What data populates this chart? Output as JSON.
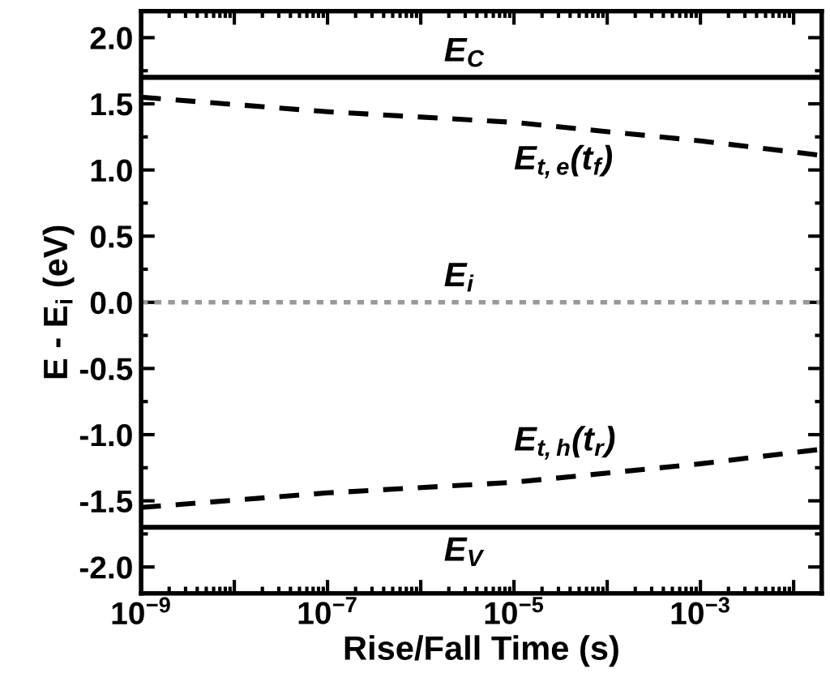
{
  "chart_data": {
    "type": "line",
    "xlabel": "Rise/Fall Time (s)",
    "ylabel": "E - E$_{i}$ (eV)",
    "log": "x",
    "x": [
      1e-09,
      1e-07,
      1e-05,
      0.001,
      0.02
    ],
    "series": [
      {
        "name": "E$_{t,e}$(t$_{f}$)",
        "color": "#000000",
        "values": [
          1.55,
          1.44,
          1.36,
          1.22,
          1.11
        ]
      },
      {
        "name": "E$_{t,h}$(t$_{r}$)",
        "color": "#000000",
        "values": [
          -1.55,
          -1.44,
          -1.36,
          -1.22,
          -1.11
        ]
      }
    ],
    "line_style": "dashed",
    "marker": "none",
    "grid": false,
    "legend": false,
    "xlim": [
      1e-09,
      0.02
    ],
    "xticks": [
      {
        "value": 1e-09,
        "label": "10$^{−9}$"
      },
      {
        "value": 1e-08,
        "label": null
      },
      {
        "value": 1e-07,
        "label": "10$^{−7}$"
      },
      {
        "value": 1e-06,
        "label": null
      },
      {
        "value": 1e-05,
        "label": "10$^{−5}$"
      },
      {
        "value": 0.0001,
        "label": null
      },
      {
        "value": 0.001,
        "label": "10$^{−3}$"
      },
      {
        "value": 0.01,
        "label": null
      }
    ],
    "ylim": [
      -2.2,
      2.2
    ],
    "yticks": [
      {
        "value": -2,
        "label": "-2.0"
      },
      {
        "value": -1.5,
        "label": "-1.5"
      },
      {
        "value": -1,
        "label": "-1.0"
      },
      {
        "value": -0.5,
        "label": "-0.5"
      },
      {
        "value": 0,
        "label": "0.0"
      },
      {
        "value": 0.5,
        "label": "0.5"
      },
      {
        "value": 1,
        "label": "1.0"
      },
      {
        "value": 1.5,
        "label": "1.5"
      },
      {
        "value": 2,
        "label": "2.0"
      }
    ],
    "ref_lines": [
      {
        "axis": "y",
        "value": 1.7,
        "label": "E$_{C}$",
        "color": "#000000",
        "line_style": "solid"
      },
      {
        "axis": "y",
        "value": 0,
        "label": "E$_{i}$",
        "color": "#999999",
        "line_style": "dotted"
      },
      {
        "axis": "y",
        "value": -1.7,
        "label": "E$_{V}$",
        "color": "#000000",
        "line_style": "solid"
      }
    ]
  }
}
